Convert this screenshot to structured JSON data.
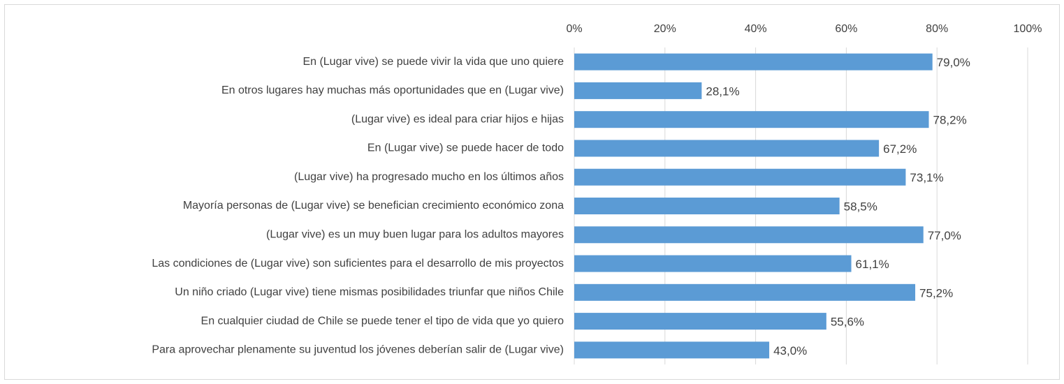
{
  "chart_data": {
    "type": "bar",
    "categories": [
      "En (Lugar vive) se puede vivir la vida que uno quiere",
      "En otros lugares hay muchas más oportunidades que en (Lugar vive)",
      "(Lugar vive) es ideal para criar hijos e hijas",
      "En (Lugar vive) se puede hacer de todo",
      "(Lugar vive) ha progresado mucho en los últimos años",
      "Mayoría personas de (Lugar vive) se benefician crecimiento económico zona",
      "(Lugar vive) es un muy buen lugar para los adultos mayores",
      "Las condiciones de (Lugar vive) son suficientes para el desarrollo de mis proyectos",
      "Un niño criado (Lugar vive) tiene mismas posibilidades triunfar que niños Chile",
      "En cualquier ciudad de Chile se puede tener el tipo de vida que yo quiero",
      "Para aprovechar plenamente su juventud los jóvenes deberían salir de (Lugar vive)"
    ],
    "values": [
      79.0,
      28.1,
      78.2,
      67.2,
      73.1,
      58.5,
      77.0,
      61.1,
      75.2,
      55.6,
      43.0
    ],
    "value_labels": [
      "79,0%",
      "28,1%",
      "78,2%",
      "67,2%",
      "73,1%",
      "58,5%",
      "77,0%",
      "61,1%",
      "75,2%",
      "55,6%",
      "43,0%"
    ],
    "color": "#5b9bd5",
    "xlim": [
      0,
      100
    ],
    "xticks": [
      {
        "value": 0,
        "label": "0%"
      },
      {
        "value": 20,
        "label": "20%"
      },
      {
        "value": 40,
        "label": "40%"
      },
      {
        "value": 60,
        "label": "60%"
      },
      {
        "value": 80,
        "label": "80%"
      },
      {
        "value": 100,
        "label": "100%"
      }
    ],
    "grid": true
  }
}
